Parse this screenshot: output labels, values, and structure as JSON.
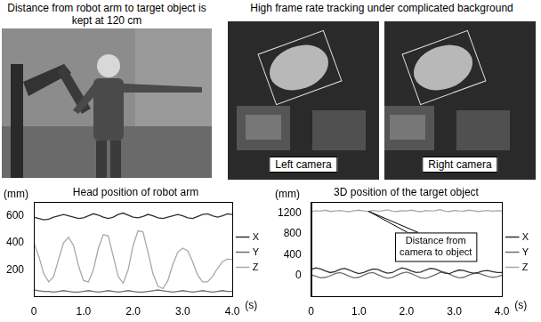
{
  "photos": {
    "left": {
      "caption": "Distance from robot arm to target object is kept at 120 cm"
    },
    "right": {
      "caption": "High frame rate tracking under complicated background",
      "labels": [
        "Left camera",
        "Right camera"
      ]
    }
  },
  "chart_data": [
    {
      "type": "line",
      "title": "Head position of robot arm",
      "x_label": "(s)",
      "y_label": "(mm)",
      "x": [
        0,
        0.1,
        0.2,
        0.3,
        0.4,
        0.5,
        0.6,
        0.7,
        0.8,
        0.9,
        1,
        1.1,
        1.2,
        1.3,
        1.4,
        1.5,
        1.6,
        1.7,
        1.8,
        1.9,
        2,
        2.1,
        2.2,
        2.3,
        2.4,
        2.5,
        2.6,
        2.7,
        2.8,
        2.9,
        3,
        3.1,
        3.2,
        3.3,
        3.4,
        3.5,
        3.6,
        3.7,
        3.8,
        3.9,
        4
      ],
      "series": [
        {
          "name": "X",
          "color": "#303030",
          "values": [
            590,
            580,
            570,
            575,
            590,
            600,
            610,
            600,
            590,
            580,
            585,
            600,
            615,
            605,
            590,
            580,
            590,
            610,
            620,
            605,
            590,
            585,
            595,
            610,
            600,
            585,
            580,
            590,
            600,
            610,
            600,
            585,
            580,
            595,
            610,
            615,
            600,
            590,
            600,
            615,
            610
          ]
        },
        {
          "name": "Y",
          "color": "#6e6e6e",
          "values": [
            50,
            45,
            40,
            40,
            35,
            40,
            45,
            40,
            35,
            35,
            40,
            45,
            40,
            35,
            40,
            45,
            40,
            35,
            40,
            45,
            40,
            35,
            35,
            40,
            45,
            50,
            45,
            40,
            35,
            40,
            45,
            40,
            35,
            40,
            45,
            40,
            35,
            40,
            45,
            40,
            40
          ]
        },
        {
          "name": "Z",
          "color": "#a8a8a8",
          "values": [
            400,
            300,
            170,
            110,
            150,
            280,
            400,
            440,
            380,
            230,
            120,
            110,
            200,
            360,
            460,
            450,
            300,
            150,
            100,
            200,
            380,
            490,
            480,
            330,
            170,
            80,
            60,
            120,
            240,
            330,
            360,
            340,
            260,
            160,
            110,
            110,
            150,
            210,
            260,
            280,
            275
          ]
        }
      ],
      "xlim": [
        0,
        4
      ],
      "xticks": [
        0,
        {
          "value": 1,
          "label": "1.0"
        },
        {
          "value": 2,
          "label": "2.0"
        },
        {
          "value": 3,
          "label": "3.0"
        },
        {
          "value": 4,
          "label": "4.0"
        }
      ],
      "ylim": [
        0,
        700
      ],
      "yticks": [
        200,
        400,
        600
      ],
      "grid": false,
      "legend": "right"
    },
    {
      "type": "line",
      "title": "3D position of the target object",
      "x_label": "(s)",
      "y_label": "(mm)",
      "x": [
        0,
        0.1,
        0.2,
        0.3,
        0.4,
        0.5,
        0.6,
        0.7,
        0.8,
        0.9,
        1,
        1.1,
        1.2,
        1.3,
        1.4,
        1.5,
        1.6,
        1.7,
        1.8,
        1.9,
        2,
        2.1,
        2.2,
        2.3,
        2.4,
        2.5,
        2.6,
        2.7,
        2.8,
        2.9,
        3,
        3.1,
        3.2,
        3.3,
        3.4,
        3.5,
        3.6,
        3.7,
        3.8,
        3.9,
        4
      ],
      "series": [
        {
          "name": "X",
          "color": "#303030",
          "values": [
            120,
            150,
            130,
            90,
            60,
            80,
            120,
            140,
            110,
            70,
            40,
            60,
            100,
            130,
            120,
            80,
            50,
            60,
            110,
            150,
            130,
            90,
            60,
            70,
            110,
            140,
            130,
            90,
            50,
            40,
            80,
            110,
            100,
            70,
            50,
            60,
            90,
            100,
            80,
            60,
            60
          ]
        },
        {
          "name": "Y",
          "color": "#6e6e6e",
          "values": [
            20,
            -10,
            -40,
            -30,
            0,
            40,
            60,
            30,
            -10,
            -40,
            -30,
            10,
            50,
            60,
            20,
            -20,
            -50,
            -30,
            10,
            50,
            70,
            40,
            0,
            -40,
            -50,
            -20,
            20,
            60,
            70,
            30,
            -10,
            -40,
            -30,
            10,
            40,
            50,
            20,
            -10,
            -30,
            -20,
            10
          ]
        },
        {
          "name": "Z",
          "color": "#a8a8a8",
          "values": [
            1220,
            1240,
            1230,
            1250,
            1225,
            1235,
            1245,
            1230,
            1220,
            1240,
            1250,
            1235,
            1225,
            1245,
            1230,
            1240,
            1255,
            1230,
            1225,
            1240,
            1235,
            1250,
            1230,
            1220,
            1245,
            1235,
            1240,
            1260,
            1230,
            1225,
            1245,
            1235,
            1230,
            1250,
            1240,
            1225,
            1235,
            1245,
            1230,
            1240,
            1235
          ]
        }
      ],
      "xlim": [
        0,
        4
      ],
      "xticks": [
        0,
        {
          "value": 1,
          "label": "1.0"
        },
        {
          "value": 2,
          "label": "2.0"
        },
        {
          "value": 3,
          "label": "3.0"
        },
        {
          "value": 4,
          "label": "4.0"
        }
      ],
      "ylim": [
        -400,
        1400
      ],
      "yticks": [
        0,
        400,
        800,
        1200
      ],
      "annotations": [
        {
          "text": "Distance from camera to object",
          "x": 1.2,
          "y": 1230
        }
      ],
      "grid": false,
      "legend": "right"
    }
  ]
}
